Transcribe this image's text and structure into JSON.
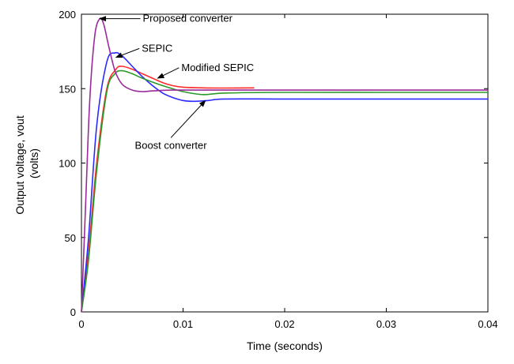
{
  "chart_data": {
    "type": "line",
    "xlabel": "Time (seconds)",
    "ylabel_lines": [
      "Output voltage, vout",
      "(volts)"
    ],
    "xlim": [
      0,
      0.04
    ],
    "ylim": [
      0,
      200
    ],
    "x_ticks": [
      0,
      0.01,
      0.02,
      0.03,
      0.04
    ],
    "x_tick_labels": [
      "0",
      "0.01",
      "0.02",
      "0.03",
      "0.04"
    ],
    "y_ticks": [
      0,
      50,
      100,
      150,
      200
    ],
    "y_tick_labels": [
      "0",
      "50",
      "100",
      "150",
      "200"
    ],
    "grid": false,
    "legend": "none",
    "series": [
      {
        "color": "#ff2a2a",
        "x": [
          0,
          0.0007,
          0.0015,
          0.0025,
          0.0034,
          0.004,
          0.005,
          0.006,
          0.007,
          0.008,
          0.009,
          0.01,
          0.012,
          0.014,
          0.017
        ],
        "y": [
          0,
          40,
          100,
          150,
          163,
          165,
          163,
          160,
          157,
          154,
          152,
          151,
          150.5,
          150.4,
          150.5
        ]
      },
      {
        "color": "#2a2aff",
        "x": [
          0,
          0.0007,
          0.0015,
          0.0025,
          0.0033,
          0.004,
          0.005,
          0.006,
          0.007,
          0.008,
          0.009,
          0.01,
          0.011,
          0.0125,
          0.014,
          0.02,
          0.03,
          0.04
        ],
        "y": [
          0,
          50,
          125,
          168,
          174,
          172,
          165,
          158,
          152,
          147,
          144,
          142,
          141.5,
          142,
          143,
          143,
          143,
          143
        ]
      },
      {
        "color": "#2a9a2a",
        "x": [
          0,
          0.0007,
          0.0015,
          0.0025,
          0.0033,
          0.004,
          0.005,
          0.006,
          0.008,
          0.01,
          0.012,
          0.014,
          0.02,
          0.03,
          0.04
        ],
        "y": [
          0,
          35,
          95,
          148,
          160,
          162,
          160,
          157,
          152,
          148,
          146,
          147,
          147.5,
          147.5,
          147.5
        ]
      },
      {
        "color": "#9a2a9a",
        "x": [
          0,
          0.0004,
          0.0008,
          0.0013,
          0.0018,
          0.0022,
          0.0027,
          0.0033,
          0.004,
          0.005,
          0.006,
          0.007,
          0.009,
          0.012,
          0.02,
          0.03,
          0.04
        ],
        "y": [
          0,
          70,
          140,
          185,
          197,
          193,
          178,
          162,
          153,
          149,
          148,
          148.5,
          149,
          149,
          149,
          149,
          149
        ]
      }
    ],
    "annotations": [
      {
        "text": "Proposed converter",
        "point": [
          0.0018,
          197
        ],
        "label_at": [
          0.0058,
          197
        ]
      },
      {
        "text": "SEPIC",
        "point": [
          0.0034,
          171
        ],
        "label_at": [
          0.0057,
          177
        ]
      },
      {
        "text": "Modified SEPIC",
        "point": [
          0.0075,
          157
        ],
        "label_at": [
          0.0096,
          164
        ]
      },
      {
        "text": "Boost converter",
        "point": [
          0.0122,
          142
        ],
        "label_at": [
          0.0088,
          117
        ]
      }
    ]
  }
}
